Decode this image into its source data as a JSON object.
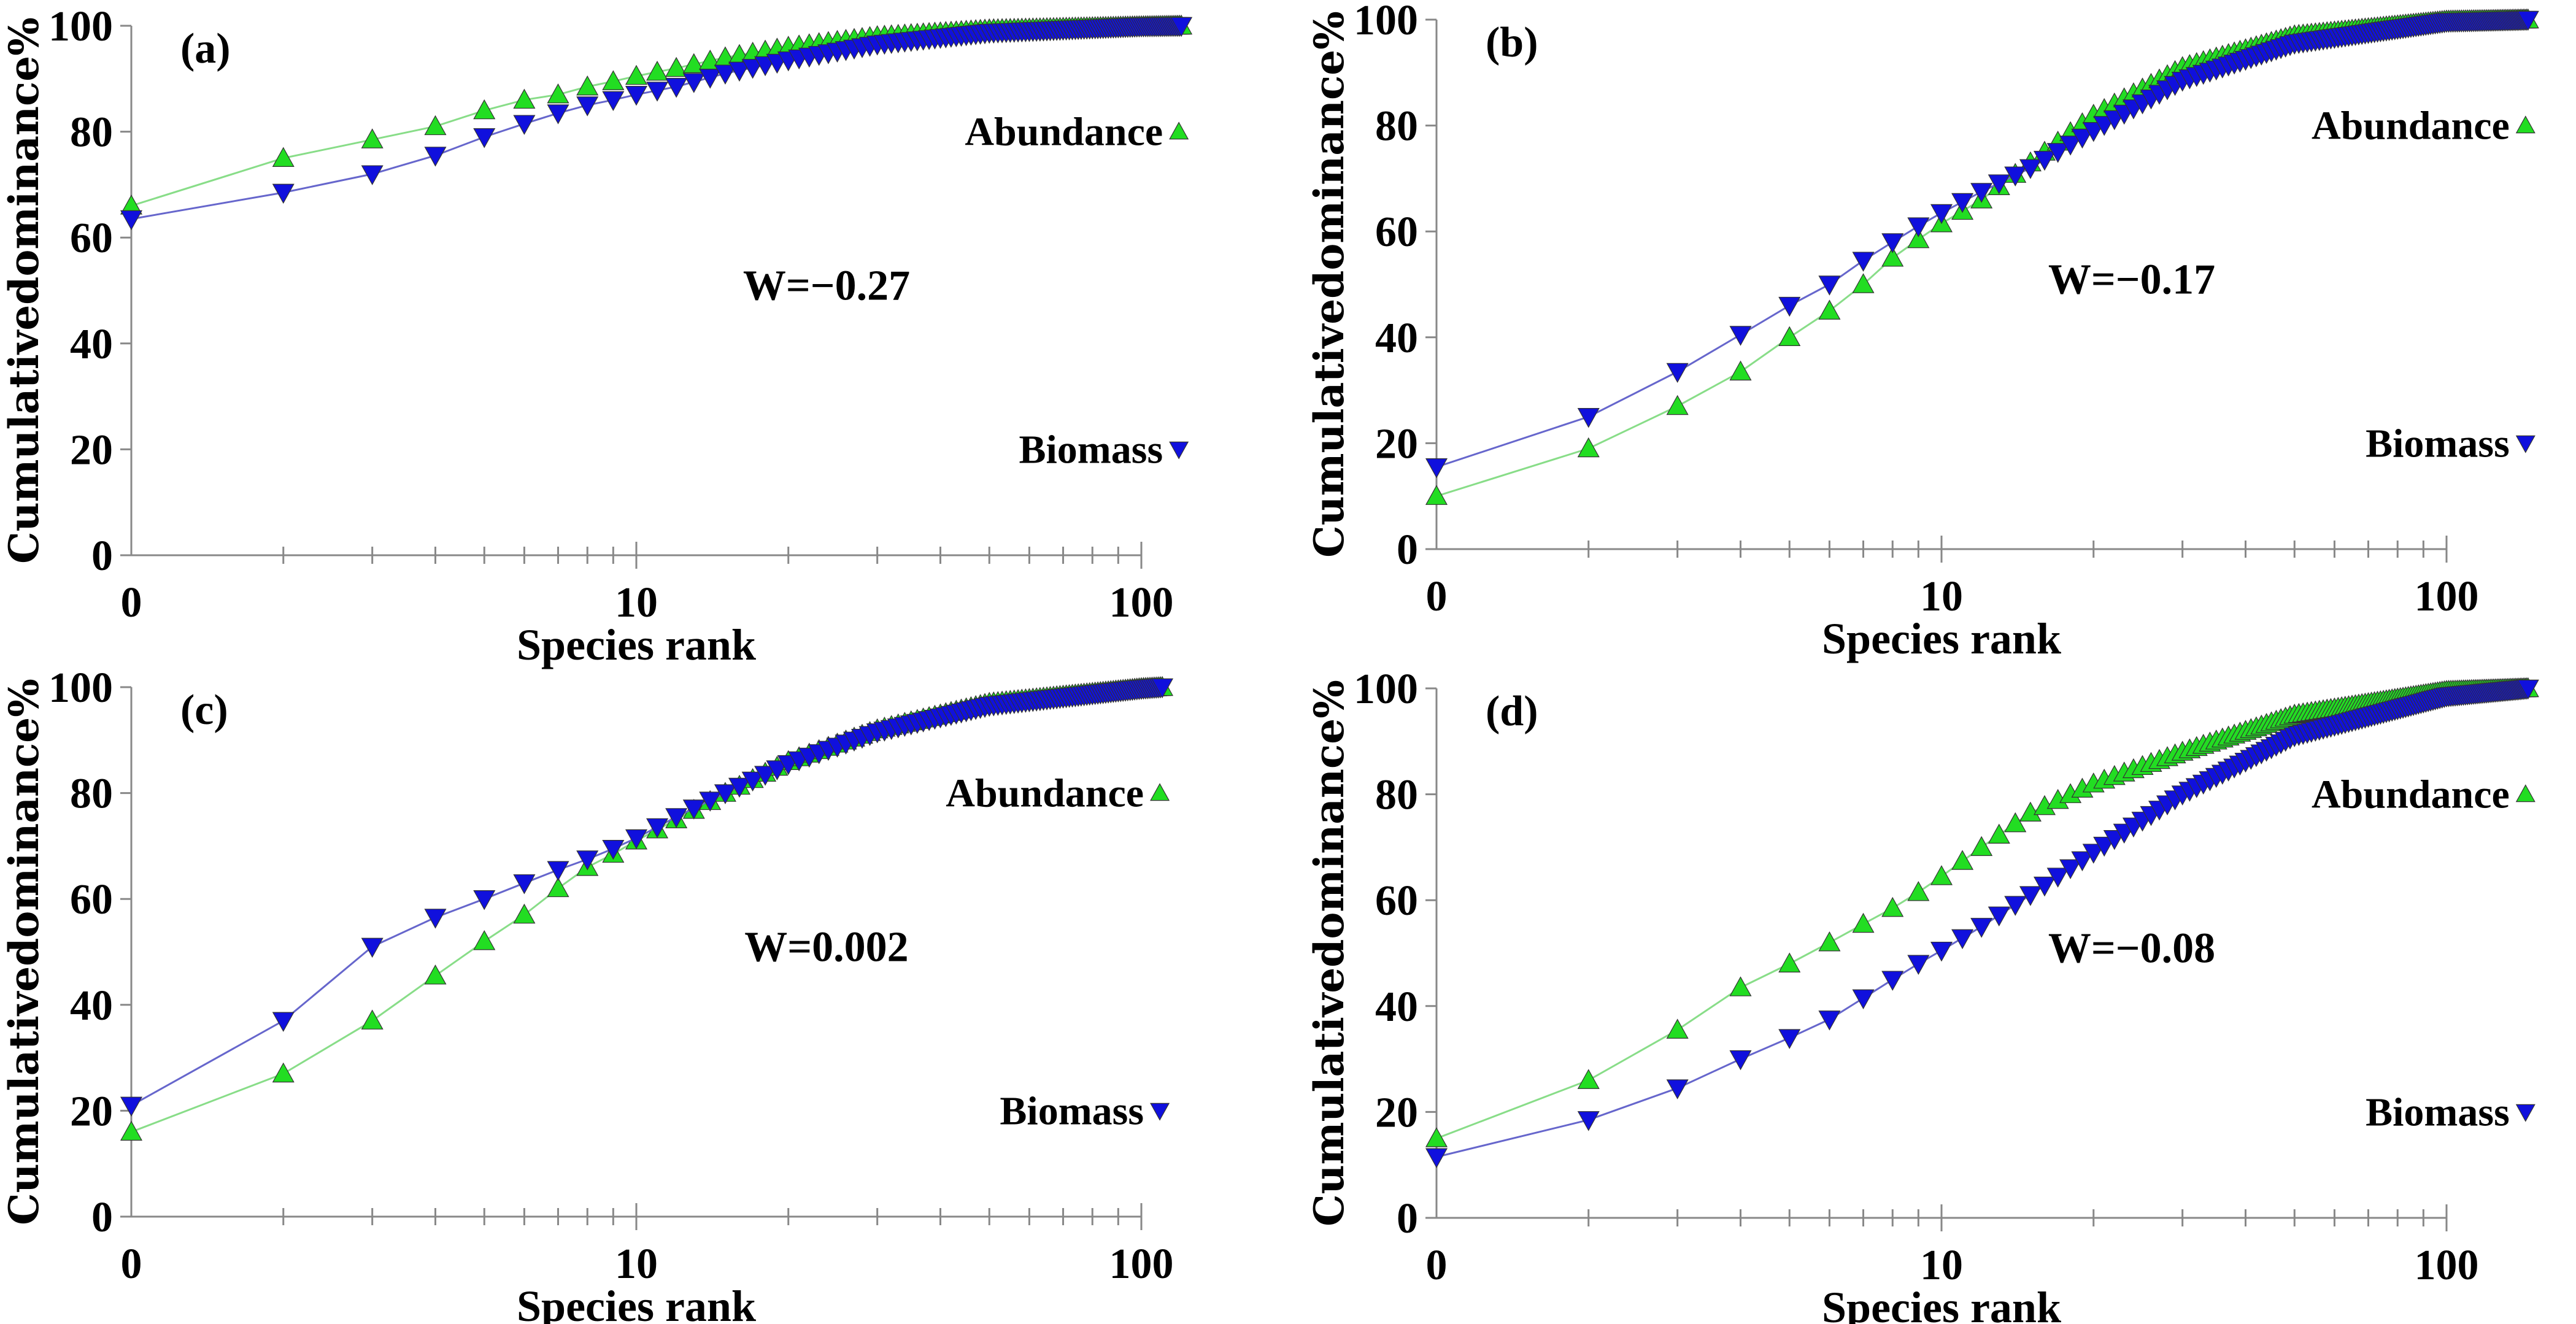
{
  "colors": {
    "abundance": "#22dd22",
    "abundance_line": "#88dd88",
    "biomass": "#1010dd",
    "biomass_line": "#6666cc",
    "axis": "#888888"
  },
  "chart_data": [
    {
      "type": "line",
      "panel_label": "(a)",
      "xscale": "log",
      "xlabel": "Species rank",
      "ylabel": "Cumulativedominance%",
      "xticks": [
        "0",
        "10",
        "100"
      ],
      "yticks": [
        "0",
        "20",
        "40",
        "60",
        "80",
        "100"
      ],
      "ylim": [
        0,
        100
      ],
      "annotation": "W=−0.27",
      "x": [
        1,
        2,
        3,
        4,
        5,
        6,
        7,
        8,
        9,
        10,
        12,
        15,
        20,
        30,
        50,
        100,
        120
      ],
      "series": [
        {
          "name": "Abundance",
          "marker": "triangle-up",
          "values": [
            66,
            75,
            78.5,
            81,
            84,
            86,
            87,
            88.5,
            89.5,
            90.5,
            92,
            94,
            96,
            98,
            99.3,
            99.9,
            100
          ]
        },
        {
          "name": "Biomass",
          "marker": "triangle-down",
          "values": [
            63.5,
            68.5,
            72,
            75.5,
            79,
            81.5,
            83.5,
            85,
            86,
            87,
            88.5,
            91,
            93.5,
            96.5,
            98.7,
            99.9,
            100
          ]
        }
      ]
    },
    {
      "type": "line",
      "panel_label": "(b)",
      "xscale": "log",
      "xlabel": "Species rank",
      "ylabel": "Cumulativedominance%",
      "xticks": [
        "0",
        "10",
        "100"
      ],
      "yticks": [
        "0",
        "20",
        "40",
        "60",
        "80",
        "100"
      ],
      "ylim": [
        0,
        100
      ],
      "annotation": "W=−0.17",
      "x": [
        1,
        2,
        3,
        4,
        5,
        6,
        7,
        8,
        9,
        10,
        12,
        15,
        20,
        30,
        50,
        100,
        145
      ],
      "series": [
        {
          "name": "Abundance",
          "marker": "triangle-up",
          "values": [
            10,
            19,
            27,
            33.5,
            40,
            45,
            50,
            55,
            58.5,
            61.5,
            66,
            73,
            82,
            91,
            97,
            99.8,
            100
          ]
        },
        {
          "name": "Biomass",
          "marker": "triangle-down",
          "values": [
            15.5,
            25,
            33.5,
            40.5,
            46,
            50,
            54.5,
            58,
            61,
            63.5,
            67.5,
            72,
            79,
            88.5,
            95.5,
            99.6,
            100
          ]
        }
      ]
    },
    {
      "type": "line",
      "panel_label": "(c)",
      "xscale": "log",
      "xlabel": "Species rank",
      "ylabel": "Cumulativedominance%",
      "xticks": [
        "0",
        "10",
        "100"
      ],
      "yticks": [
        "0",
        "20",
        "40",
        "60",
        "80",
        "100"
      ],
      "ylim": [
        0,
        100
      ],
      "annotation": "W=0.002",
      "x": [
        1,
        2,
        3,
        4,
        5,
        6,
        7,
        8,
        9,
        10,
        12,
        15,
        20,
        30,
        50,
        100,
        110
      ],
      "series": [
        {
          "name": "Abundance",
          "marker": "triangle-up",
          "values": [
            16,
            27,
            37,
            45.5,
            52,
            57,
            62,
            66,
            68.5,
            71,
            75,
            80,
            86,
            92,
            97,
            99.8,
            100
          ]
        },
        {
          "name": "Biomass",
          "marker": "triangle-down",
          "values": [
            21,
            37,
            51,
            56.5,
            60,
            63,
            65.5,
            67.5,
            69.5,
            71.5,
            75.5,
            80,
            85.5,
            91.5,
            96.5,
            99.7,
            100
          ]
        }
      ]
    },
    {
      "type": "line",
      "panel_label": "(d)",
      "xscale": "log",
      "xlabel": "Species rank",
      "ylabel": "Cumulativedominance%",
      "xticks": [
        "0",
        "10",
        "100"
      ],
      "yticks": [
        "0",
        "20",
        "40",
        "60",
        "80",
        "100"
      ],
      "ylim": [
        0,
        100
      ],
      "annotation": "W=−0.08",
      "x": [
        1,
        2,
        3,
        4,
        5,
        6,
        7,
        8,
        9,
        10,
        12,
        15,
        20,
        30,
        50,
        100,
        145
      ],
      "series": [
        {
          "name": "Abundance",
          "marker": "triangle-up",
          "values": [
            15,
            26,
            35.5,
            43.5,
            48,
            52,
            55.5,
            58.5,
            61.5,
            64.5,
            70,
            76.5,
            82,
            88,
            95,
            99.5,
            100
          ]
        },
        {
          "name": "Biomass",
          "marker": "triangle-down",
          "values": [
            11.5,
            18.5,
            24.5,
            30,
            34,
            37.5,
            41.5,
            45,
            48,
            50.5,
            55,
            61,
            69,
            80,
            91,
            98.5,
            100
          ]
        }
      ]
    }
  ]
}
